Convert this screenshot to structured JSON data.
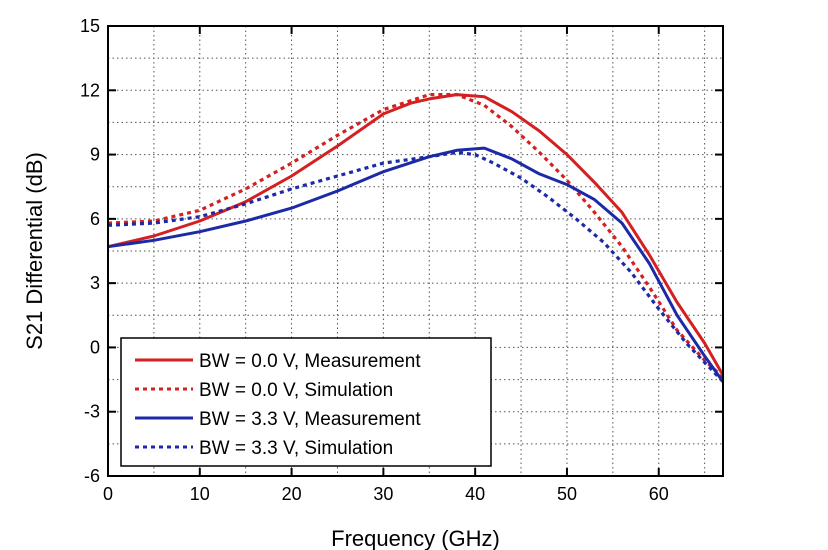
{
  "chart_data": {
    "type": "line",
    "xlabel": "Frequency (GHz)",
    "ylabel": "S21 Differential (dB)",
    "xlim": [
      0,
      67
    ],
    "ylim": [
      -6,
      15
    ],
    "x_ticks": [
      0,
      10,
      20,
      30,
      40,
      50,
      60
    ],
    "y_ticks": [
      -6,
      -3,
      0,
      3,
      6,
      9,
      12,
      15
    ],
    "grid": "dotted every 5 GHz and 1.5 dB",
    "legend_position": "bottom-left",
    "series": [
      {
        "name": "BW = 0.0 V, Measurement",
        "color": "#d42020",
        "style": "solid",
        "x": [
          0,
          5,
          10,
          15,
          20,
          25,
          30,
          33,
          35,
          38,
          41,
          44,
          47,
          50,
          53,
          56,
          59,
          62,
          65,
          67
        ],
        "y": [
          4.7,
          5.2,
          5.9,
          6.8,
          8.0,
          9.4,
          10.9,
          11.4,
          11.6,
          11.8,
          11.7,
          11.0,
          10.1,
          9.0,
          7.7,
          6.3,
          4.3,
          2.1,
          0.2,
          -1.3
        ]
      },
      {
        "name": "BW = 0.0 V, Simulation",
        "color": "#d42020",
        "style": "dotted",
        "x": [
          0,
          5,
          10,
          15,
          20,
          25,
          30,
          35,
          38,
          41,
          44,
          47,
          50,
          53,
          56,
          59,
          62,
          65,
          67
        ],
        "y": [
          5.8,
          5.9,
          6.4,
          7.4,
          8.6,
          9.9,
          11.1,
          11.8,
          11.8,
          11.3,
          10.3,
          9.1,
          7.8,
          6.3,
          4.7,
          2.8,
          0.8,
          -0.6,
          -1.4
        ]
      },
      {
        "name": "BW = 3.3 V, Measurement",
        "color": "#1c2aa8",
        "style": "solid",
        "x": [
          0,
          5,
          10,
          15,
          20,
          25,
          30,
          35,
          38,
          41,
          44,
          47,
          50,
          53,
          56,
          59,
          62,
          65,
          67
        ],
        "y": [
          4.7,
          5.0,
          5.4,
          5.9,
          6.5,
          7.3,
          8.2,
          8.9,
          9.2,
          9.3,
          8.8,
          8.1,
          7.6,
          6.9,
          5.8,
          3.9,
          1.5,
          -0.4,
          -1.6
        ]
      },
      {
        "name": "BW = 3.3 V, Simulation",
        "color": "#1c2aa8",
        "style": "dotted",
        "x": [
          0,
          5,
          10,
          15,
          20,
          25,
          30,
          35,
          38,
          40,
          42,
          45,
          48,
          51,
          54,
          57,
          60,
          63,
          67
        ],
        "y": [
          5.7,
          5.8,
          6.1,
          6.7,
          7.4,
          8.0,
          8.6,
          8.9,
          9.1,
          9.0,
          8.6,
          7.9,
          7.0,
          6.0,
          4.9,
          3.5,
          1.8,
          0.2,
          -1.6
        ]
      }
    ]
  }
}
